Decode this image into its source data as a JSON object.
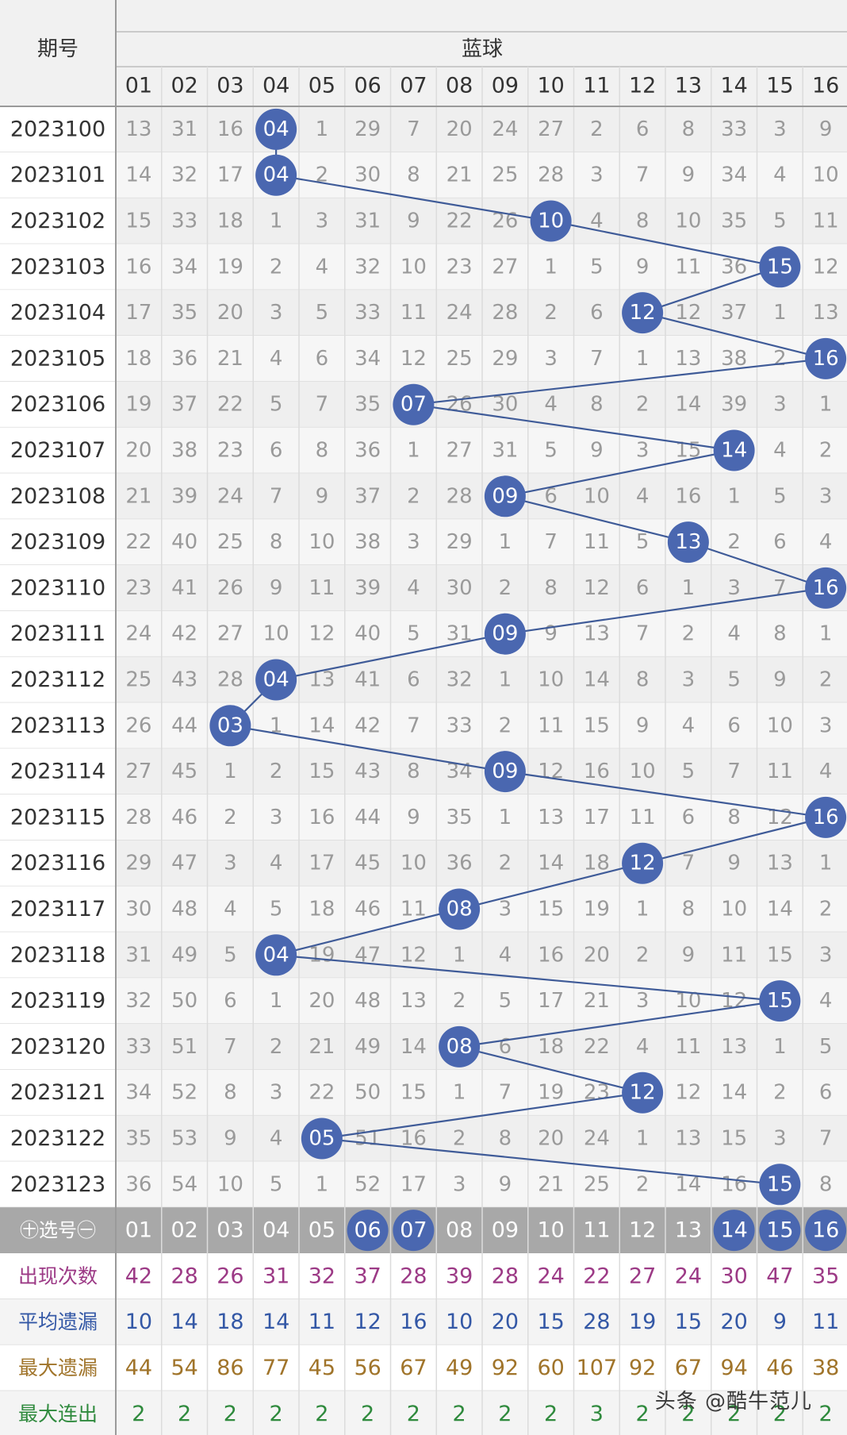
{
  "header": {
    "period_label": "期号",
    "group_label": "蓝球",
    "columns": [
      "01",
      "02",
      "03",
      "04",
      "05",
      "06",
      "07",
      "08",
      "09",
      "10",
      "11",
      "12",
      "13",
      "14",
      "15",
      "16"
    ]
  },
  "colors": {
    "ball": "#4a67b0",
    "line": "#3f5b98",
    "grid": "#dcdcdc",
    "row_alt": "#f2f2f2",
    "miss_text": "#9a9a9a",
    "select_bar": "#a8a8a8",
    "count_text": "#9c3a86",
    "avg_text": "#3458a6",
    "max_miss_text": "#a0742a",
    "streak_text": "#2f8a3d"
  },
  "chart_data": {
    "type": "table",
    "title": "蓝球",
    "periods": [
      "2023100",
      "2023101",
      "2023102",
      "2023103",
      "2023104",
      "2023105",
      "2023106",
      "2023107",
      "2023108",
      "2023109",
      "2023110",
      "2023111",
      "2023112",
      "2023113",
      "2023114",
      "2023115",
      "2023116",
      "2023117",
      "2023118",
      "2023119",
      "2023120",
      "2023121",
      "2023122",
      "2023123"
    ],
    "drawn": [
      "04",
      "04",
      "10",
      "15",
      "12",
      "16",
      "07",
      "14",
      "09",
      "13",
      "16",
      "09",
      "04",
      "03",
      "09",
      "16",
      "12",
      "08",
      "04",
      "15",
      "08",
      "12",
      "05",
      "15"
    ],
    "rows": [
      [
        "13",
        "31",
        "16",
        "04",
        "1",
        "29",
        "7",
        "20",
        "24",
        "27",
        "2",
        "6",
        "8",
        "33",
        "3",
        "9"
      ],
      [
        "14",
        "32",
        "17",
        "04",
        "2",
        "30",
        "8",
        "21",
        "25",
        "28",
        "3",
        "7",
        "9",
        "34",
        "4",
        "10"
      ],
      [
        "15",
        "33",
        "18",
        "1",
        "3",
        "31",
        "9",
        "22",
        "26",
        "10",
        "4",
        "8",
        "10",
        "35",
        "5",
        "11"
      ],
      [
        "16",
        "34",
        "19",
        "2",
        "4",
        "32",
        "10",
        "23",
        "27",
        "1",
        "5",
        "9",
        "11",
        "36",
        "15",
        "12"
      ],
      [
        "17",
        "35",
        "20",
        "3",
        "5",
        "33",
        "11",
        "24",
        "28",
        "2",
        "6",
        "12",
        "12",
        "37",
        "1",
        "13"
      ],
      [
        "18",
        "36",
        "21",
        "4",
        "6",
        "34",
        "12",
        "25",
        "29",
        "3",
        "7",
        "1",
        "13",
        "38",
        "2",
        "16"
      ],
      [
        "19",
        "37",
        "22",
        "5",
        "7",
        "35",
        "07",
        "26",
        "30",
        "4",
        "8",
        "2",
        "14",
        "39",
        "3",
        "1"
      ],
      [
        "20",
        "38",
        "23",
        "6",
        "8",
        "36",
        "1",
        "27",
        "31",
        "5",
        "9",
        "3",
        "15",
        "14",
        "4",
        "2"
      ],
      [
        "21",
        "39",
        "24",
        "7",
        "9",
        "37",
        "2",
        "28",
        "09",
        "6",
        "10",
        "4",
        "16",
        "1",
        "5",
        "3"
      ],
      [
        "22",
        "40",
        "25",
        "8",
        "10",
        "38",
        "3",
        "29",
        "1",
        "7",
        "11",
        "5",
        "13",
        "2",
        "6",
        "4"
      ],
      [
        "23",
        "41",
        "26",
        "9",
        "11",
        "39",
        "4",
        "30",
        "2",
        "8",
        "12",
        "6",
        "1",
        "3",
        "7",
        "16"
      ],
      [
        "24",
        "42",
        "27",
        "10",
        "12",
        "40",
        "5",
        "31",
        "09",
        "9",
        "13",
        "7",
        "2",
        "4",
        "8",
        "1"
      ],
      [
        "25",
        "43",
        "28",
        "04",
        "13",
        "41",
        "6",
        "32",
        "1",
        "10",
        "14",
        "8",
        "3",
        "5",
        "9",
        "2"
      ],
      [
        "26",
        "44",
        "03",
        "1",
        "14",
        "42",
        "7",
        "33",
        "2",
        "11",
        "15",
        "9",
        "4",
        "6",
        "10",
        "3"
      ],
      [
        "27",
        "45",
        "1",
        "2",
        "15",
        "43",
        "8",
        "34",
        "09",
        "12",
        "16",
        "10",
        "5",
        "7",
        "11",
        "4"
      ],
      [
        "28",
        "46",
        "2",
        "3",
        "16",
        "44",
        "9",
        "35",
        "1",
        "13",
        "17",
        "11",
        "6",
        "8",
        "12",
        "16"
      ],
      [
        "29",
        "47",
        "3",
        "4",
        "17",
        "45",
        "10",
        "36",
        "2",
        "14",
        "18",
        "12",
        "7",
        "9",
        "13",
        "1"
      ],
      [
        "30",
        "48",
        "4",
        "5",
        "18",
        "46",
        "11",
        "08",
        "3",
        "15",
        "19",
        "1",
        "8",
        "10",
        "14",
        "2"
      ],
      [
        "31",
        "49",
        "5",
        "04",
        "19",
        "47",
        "12",
        "1",
        "4",
        "16",
        "20",
        "2",
        "9",
        "11",
        "15",
        "3"
      ],
      [
        "32",
        "50",
        "6",
        "1",
        "20",
        "48",
        "13",
        "2",
        "5",
        "17",
        "21",
        "3",
        "10",
        "12",
        "15",
        "4"
      ],
      [
        "33",
        "51",
        "7",
        "2",
        "21",
        "49",
        "14",
        "08",
        "6",
        "18",
        "22",
        "4",
        "11",
        "13",
        "1",
        "5"
      ],
      [
        "34",
        "52",
        "8",
        "3",
        "22",
        "50",
        "15",
        "1",
        "7",
        "19",
        "23",
        "12",
        "12",
        "14",
        "2",
        "6"
      ],
      [
        "35",
        "53",
        "9",
        "4",
        "05",
        "51",
        "16",
        "2",
        "8",
        "20",
        "24",
        "1",
        "13",
        "15",
        "3",
        "7"
      ],
      [
        "36",
        "54",
        "10",
        "5",
        "1",
        "52",
        "17",
        "3",
        "9",
        "21",
        "25",
        "2",
        "14",
        "16",
        "15",
        "8"
      ]
    ],
    "select_row": {
      "label": "㊉选号㊀",
      "selected": [
        "06",
        "07",
        "14",
        "15",
        "16"
      ]
    },
    "stats": [
      {
        "label": "出现次数",
        "values": [
          "42",
          "28",
          "26",
          "31",
          "32",
          "37",
          "28",
          "39",
          "28",
          "24",
          "22",
          "27",
          "24",
          "30",
          "47",
          "35"
        ]
      },
      {
        "label": "平均遗漏",
        "values": [
          "10",
          "14",
          "18",
          "14",
          "11",
          "12",
          "16",
          "10",
          "20",
          "15",
          "28",
          "19",
          "15",
          "20",
          "9",
          "11"
        ]
      },
      {
        "label": "最大遗漏",
        "values": [
          "44",
          "54",
          "86",
          "77",
          "45",
          "56",
          "67",
          "49",
          "92",
          "60",
          "107",
          "92",
          "67",
          "94",
          "46",
          "38"
        ]
      },
      {
        "label": "最大连出",
        "values": [
          "2",
          "2",
          "2",
          "2",
          "2",
          "2",
          "2",
          "2",
          "2",
          "2",
          "3",
          "2",
          "2",
          "2",
          "2",
          "2"
        ]
      }
    ]
  },
  "watermark": "头条 @酷牛范儿"
}
